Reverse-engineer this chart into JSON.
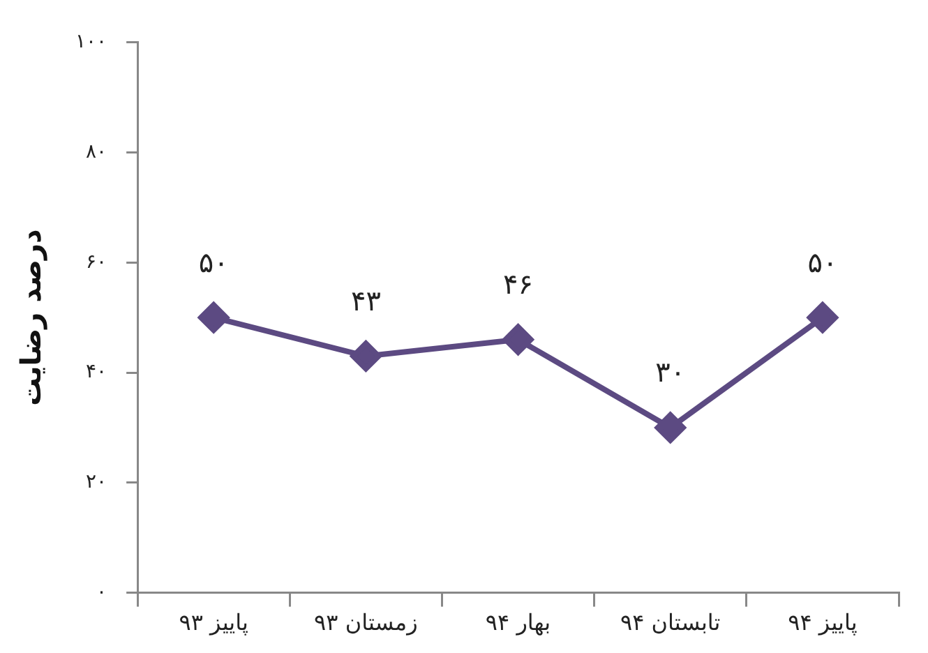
{
  "chart_data": {
    "type": "line",
    "ylabel": "درصد رضایت",
    "categories": [
      "پاییز ۹۳",
      "زمستان ۹۳",
      "بهار ۹۴",
      "تابستان ۹۴",
      "پاییز ۹۴"
    ],
    "series": [
      {
        "color": "#5c4a82",
        "values": [
          50,
          43,
          46,
          30,
          50
        ],
        "value_labels": [
          "۵۰",
          "۴۳",
          "۴۶",
          "۳۰",
          "۵۰"
        ]
      }
    ],
    "ylim": [
      0,
      100
    ],
    "yticks": [
      {
        "value": 0,
        "label": "۰"
      },
      {
        "value": 20,
        "label": "۲۰"
      },
      {
        "value": 40,
        "label": "۴۰"
      },
      {
        "value": 60,
        "label": "۶۰"
      },
      {
        "value": 80,
        "label": "۸۰"
      },
      {
        "value": 100,
        "label": "۱۰۰"
      }
    ],
    "grid": false,
    "legend": false,
    "marker": "diamond",
    "line_style": "solid"
  }
}
